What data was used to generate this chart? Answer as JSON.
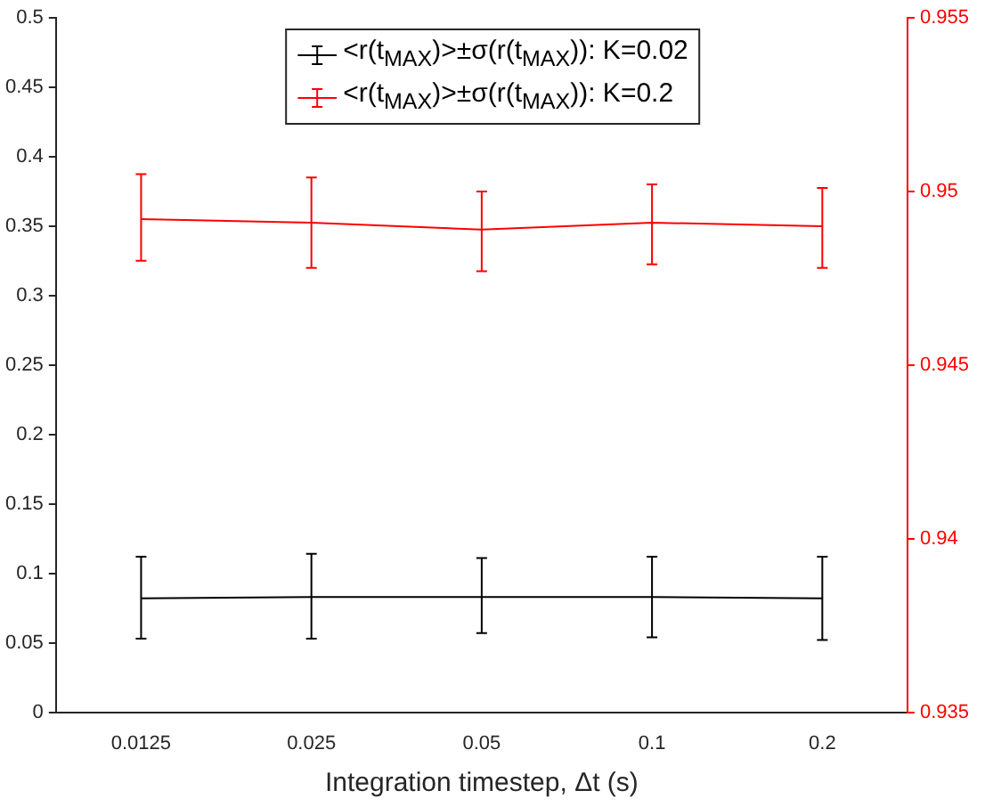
{
  "chart_data": {
    "type": "line",
    "xlabel": "Integration timestep, Δt (s)",
    "categories": [
      "0.0125",
      "0.025",
      "0.05",
      "0.1",
      "0.2"
    ],
    "series": [
      {
        "name": "<r(t$_{MAX}$)>±σ(r(t$_{MAX}$)): K=0.02",
        "color": "#000000",
        "values": [
          0.082,
          0.083,
          0.083,
          0.083,
          0.082
        ],
        "errors": [
          [
            0.053,
            0.112
          ],
          [
            0.053,
            0.114
          ],
          [
            0.057,
            0.111
          ],
          [
            0.054,
            0.112
          ],
          [
            0.052,
            0.112
          ]
        ]
      },
      {
        "name": "<r(t$_{MAX}$)>±σ(r(t$_{MAX}$)): K=0.2",
        "color": "#ff0000",
        "axis": "y2",
        "values": [
          0.9492,
          0.9491,
          0.9489,
          0.9491,
          0.949
        ],
        "errors": [
          [
            0.948,
            0.9505
          ],
          [
            0.9478,
            0.9504
          ],
          [
            0.9477,
            0.95
          ],
          [
            0.9479,
            0.9502
          ],
          [
            0.9478,
            0.9501
          ]
        ]
      }
    ],
    "ylim": [
      0,
      0.5
    ],
    "yticks": [
      0,
      0.05,
      0.1,
      0.15,
      0.2,
      0.25,
      0.3,
      0.35,
      0.4,
      0.45,
      0.5
    ],
    "y2lim": [
      0.935,
      0.955
    ],
    "y2ticks": [
      0.935,
      0.94,
      0.945,
      0.95,
      0.955
    ],
    "grid": false,
    "legend": "top",
    "marker": "none",
    "line_style": "solid"
  }
}
